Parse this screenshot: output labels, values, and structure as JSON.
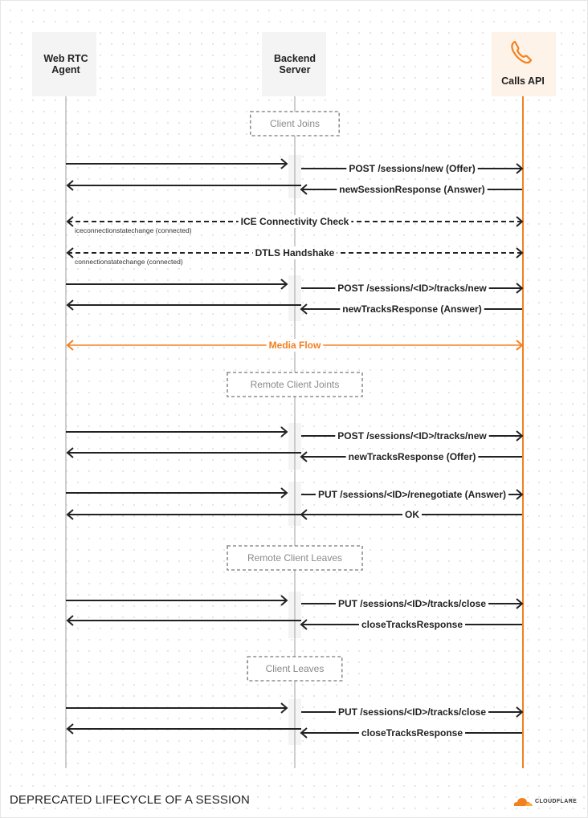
{
  "title": "DEPRECATED LIFECYCLE OF A SESSION",
  "logo_text": "CLOUDFLARE",
  "colors": {
    "accent": "#f38020",
    "line": "#222222",
    "lifeline": "#bdbdbd",
    "header_bg": "#f4f4f5",
    "accent_bg": "#fdf3e8",
    "section_text": "#8a8a8a"
  },
  "participants": [
    {
      "id": "web",
      "label": [
        "Web RTC",
        "Agent"
      ]
    },
    {
      "id": "backend",
      "label": [
        "Backend",
        "Server"
      ]
    },
    {
      "id": "calls",
      "label": [
        "Calls API"
      ],
      "icon": "phone-icon"
    }
  ],
  "steps": [
    {
      "type": "section",
      "label": "Client Joins"
    },
    {
      "type": "msg",
      "from": "web",
      "to": "backend",
      "label": ""
    },
    {
      "type": "msg",
      "from": "backend",
      "to": "calls",
      "label": "POST /sessions/new (Offer)"
    },
    {
      "type": "msg",
      "from": "calls",
      "to": "backend",
      "label": "newSessionResponse (Answer)"
    },
    {
      "type": "msg",
      "from": "backend",
      "to": "web",
      "label": ""
    },
    {
      "type": "dashed",
      "from": "web",
      "to": "calls",
      "label": "ICE Connectivity Check",
      "note": "iceconnectionstatechange (connected)"
    },
    {
      "type": "dashed",
      "from": "web",
      "to": "calls",
      "label": "DTLS Handshake",
      "note": "connectionstatechange (connected)"
    },
    {
      "type": "msg",
      "from": "web",
      "to": "backend",
      "label": ""
    },
    {
      "type": "msg",
      "from": "backend",
      "to": "calls",
      "label": "POST /sessions/<ID>/tracks/new"
    },
    {
      "type": "msg",
      "from": "calls",
      "to": "backend",
      "label": "newTracksResponse (Answer)"
    },
    {
      "type": "msg",
      "from": "backend",
      "to": "web",
      "label": ""
    },
    {
      "type": "media",
      "from": "web",
      "to": "calls",
      "label": "Media Flow"
    },
    {
      "type": "section",
      "label": "Remote Client Joints"
    },
    {
      "type": "msg",
      "from": "web",
      "to": "backend",
      "label": ""
    },
    {
      "type": "msg",
      "from": "backend",
      "to": "calls",
      "label": "POST /sessions/<ID>/tracks/new"
    },
    {
      "type": "msg",
      "from": "calls",
      "to": "backend",
      "label": "newTracksResponse (Offer)"
    },
    {
      "type": "msg",
      "from": "backend",
      "to": "web",
      "label": ""
    },
    {
      "type": "msg",
      "from": "web",
      "to": "backend",
      "label": ""
    },
    {
      "type": "msg",
      "from": "backend",
      "to": "calls",
      "label": "PUT /sessions/<ID>/renegotiate (Answer)"
    },
    {
      "type": "msg",
      "from": "calls",
      "to": "backend",
      "label": "OK"
    },
    {
      "type": "msg",
      "from": "backend",
      "to": "web",
      "label": ""
    },
    {
      "type": "section",
      "label": "Remote Client Leaves"
    },
    {
      "type": "msg",
      "from": "web",
      "to": "backend",
      "label": ""
    },
    {
      "type": "msg",
      "from": "backend",
      "to": "calls",
      "label": "PUT /sessions/<ID>/tracks/close"
    },
    {
      "type": "msg",
      "from": "calls",
      "to": "backend",
      "label": "closeTracksResponse"
    },
    {
      "type": "msg",
      "from": "backend",
      "to": "web",
      "label": ""
    },
    {
      "type": "section",
      "label": "Client Leaves"
    },
    {
      "type": "msg",
      "from": "web",
      "to": "backend",
      "label": ""
    },
    {
      "type": "msg",
      "from": "backend",
      "to": "calls",
      "label": "PUT /sessions/<ID>/tracks/close"
    },
    {
      "type": "msg",
      "from": "calls",
      "to": "backend",
      "label": "closeTracksResponse"
    },
    {
      "type": "msg",
      "from": "backend",
      "to": "web",
      "label": ""
    }
  ]
}
